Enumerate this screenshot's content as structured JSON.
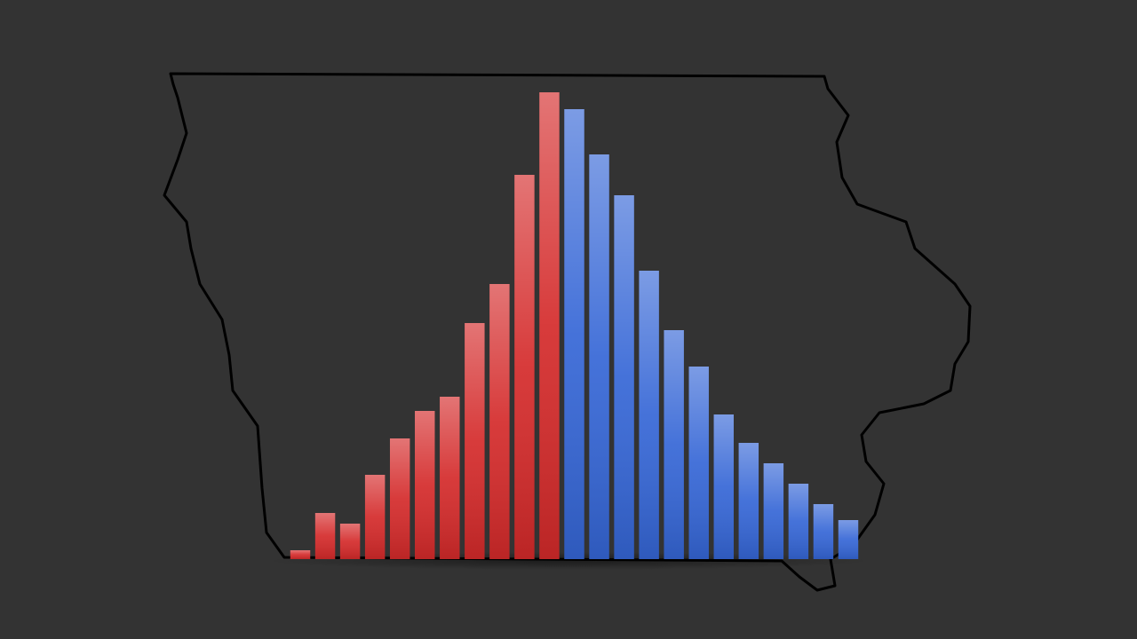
{
  "chart_data": {
    "type": "bar",
    "categories": [
      null,
      null,
      null,
      null,
      null,
      null,
      null,
      null,
      null,
      null,
      null,
      null,
      null,
      null,
      null,
      null,
      null,
      null,
      null,
      null,
      null,
      null,
      null
    ],
    "series": [
      {
        "color": "#d42a2a",
        "values": [
          10,
          52,
          40,
          95,
          136,
          167,
          183,
          266,
          310,
          433,
          526,
          null,
          null,
          null,
          null,
          null,
          null,
          null,
          null,
          null,
          null,
          null,
          null
        ]
      },
      {
        "color": "#3566d6",
        "values": [
          null,
          null,
          null,
          null,
          null,
          null,
          null,
          null,
          null,
          null,
          null,
          507,
          456,
          410,
          325,
          258,
          217,
          163,
          131,
          108,
          85,
          62,
          44
        ]
      }
    ],
    "ylim": [
      0,
      530
    ]
  }
}
